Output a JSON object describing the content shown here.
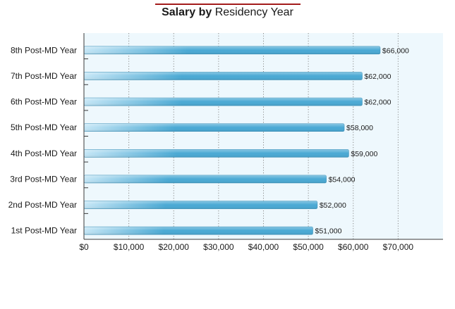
{
  "chart_data": {
    "type": "bar",
    "orientation": "horizontal",
    "title_bold": "Salary by",
    "title_rest": "Residency Year",
    "categories": [
      "8th Post-MD Year",
      "7th Post-MD Year",
      "6th Post-MD Year",
      "5th Post-MD Year",
      "4th Post-MD Year",
      "3rd Post-MD Year",
      "2nd Post-MD Year",
      "1st Post-MD Year"
    ],
    "values": [
      66000,
      62000,
      62000,
      58000,
      59000,
      54000,
      52000,
      51000
    ],
    "value_labels": [
      "$66,000",
      "$62,000",
      "$62,000",
      "$58,000",
      "$59,000",
      "$54,000",
      "$52,000",
      "$51,000"
    ],
    "x_ticks": [
      0,
      10000,
      20000,
      30000,
      40000,
      50000,
      60000,
      70000
    ],
    "x_tick_labels": [
      "$0",
      "$10,000",
      "$20,000",
      "$30,000",
      "$40,000",
      "$50,000",
      "$60,000",
      "$70,000"
    ],
    "xlim": [
      0,
      80000
    ],
    "grid": "vertical-dotted",
    "colors": {
      "bar_light": "#c4e6f6",
      "bar_dark": "#4aa9d4",
      "bar_stroke": "#3a90b8",
      "plot_bg": "#eef8fd",
      "grid": "#8a8a8a",
      "title_rule": "#a31b1b"
    }
  }
}
